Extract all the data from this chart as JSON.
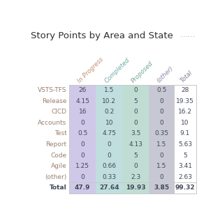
{
  "title": "Story Points by Area and State",
  "col_headers": [
    "In Progress",
    "Completed",
    "Proposed",
    "(other)",
    "Total"
  ],
  "row_headers": [
    "VSTS-TFS",
    "Release",
    "CICD",
    "Accounts",
    "Test",
    "Report",
    "Code",
    "Agile",
    "(other)",
    "Total"
  ],
  "values": [
    [
      26,
      1.5,
      0,
      0.5,
      28
    ],
    [
      4.15,
      10.2,
      5,
      0,
      19.35
    ],
    [
      16,
      0.2,
      0,
      0,
      16.2
    ],
    [
      0,
      10,
      0,
      0,
      10
    ],
    [
      0.5,
      4.75,
      3.5,
      0.35,
      9.1
    ],
    [
      0,
      0,
      4.13,
      1.5,
      5.63
    ],
    [
      0,
      0,
      5,
      0,
      5
    ],
    [
      1.25,
      0.66,
      0,
      1.5,
      3.41
    ],
    [
      0,
      0.33,
      2.3,
      0,
      2.63
    ],
    [
      47.9,
      27.64,
      19.93,
      3.85,
      99.32
    ]
  ],
  "col_bg_colors": [
    "#d0c8e8",
    "#c0dede",
    "#c0ddd4",
    "#c8c8d4",
    "#ffffff"
  ],
  "header_text_colors": [
    "#c09070",
    "#70aaa8",
    "#70a898",
    "#8888a8",
    "#808090"
  ],
  "row_label_color": "#9a8070",
  "total_label_color": "#404858",
  "cell_text_color": "#404858",
  "total_cell_color": "#404858",
  "title_color": "#303030",
  "bg_color": "#ffffff",
  "border_color": "#c8c8c8",
  "ellipsis_color": "#a0a0a0",
  "title_fontsize": 9.5,
  "header_fontsize": 6.2,
  "cell_fontsize": 6.5,
  "row_label_fontsize": 6.5
}
